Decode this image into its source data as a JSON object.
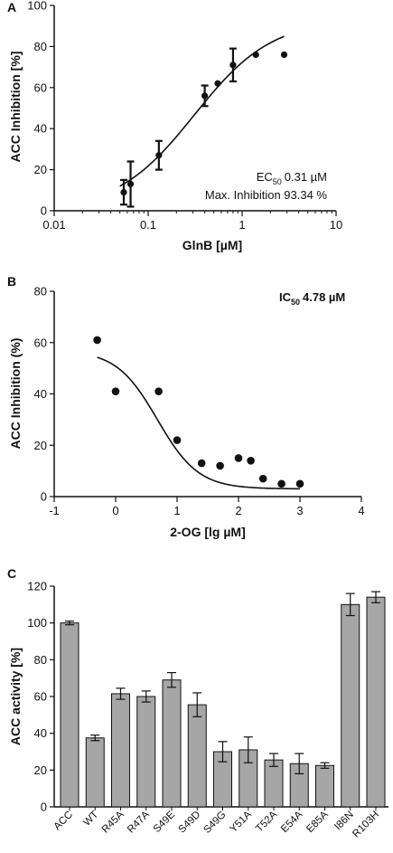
{
  "chart_data": [
    {
      "panel": "A",
      "type": "scatter",
      "xscale": "log",
      "xlabel": "GlnB [µM]",
      "ylabel": "ACC Inhibition [%]",
      "xlim": [
        0.01,
        10
      ],
      "ylim": [
        0,
        100
      ],
      "xticks": [
        0.01,
        0.1,
        1,
        10
      ],
      "xtick_labels": [
        "0.01",
        "0.1",
        "1",
        "10"
      ],
      "yticks": [
        0,
        20,
        40,
        60,
        80,
        100
      ],
      "ytick_labels": [
        "0",
        "20",
        "40",
        "60",
        "80",
        "100"
      ],
      "points": [
        {
          "x": 0.055,
          "y": 9,
          "err": 6
        },
        {
          "x": 0.065,
          "y": 13,
          "err": 11
        },
        {
          "x": 0.13,
          "y": 27,
          "err": 7
        },
        {
          "x": 0.4,
          "y": 56,
          "err": 5
        },
        {
          "x": 0.55,
          "y": 62,
          "err": 0
        },
        {
          "x": 0.8,
          "y": 71,
          "err": 8
        },
        {
          "x": 1.4,
          "y": 76,
          "err": 0
        },
        {
          "x": 2.8,
          "y": 76,
          "err": 0
        }
      ],
      "fit": {
        "model": "hill",
        "top": 93.34,
        "ec50": 0.31,
        "hill": 1.05,
        "x_range": [
          0.05,
          2.8
        ]
      },
      "annotations": {
        "ec50_prefix": "EC",
        "ec50_sub": "50",
        "ec50_value": "0.31 µM",
        "max_inhibition": "Max. Inhibition 93.34 %"
      }
    },
    {
      "panel": "B",
      "type": "scatter",
      "xlabel": "2-OG [lg µM]",
      "ylabel": "ACC Inhibition (%)",
      "xlim": [
        -1,
        4
      ],
      "ylim": [
        0,
        80
      ],
      "xticks": [
        -1,
        0,
        1,
        2,
        3,
        4
      ],
      "xtick_labels": [
        "-1",
        "0",
        "1",
        "2",
        "3",
        "4"
      ],
      "yticks": [
        0,
        20,
        40,
        60,
        80
      ],
      "ytick_labels": [
        "0",
        "20",
        "40",
        "60",
        "80"
      ],
      "points": [
        {
          "x": -0.3,
          "y": 61
        },
        {
          "x": 0.0,
          "y": 41
        },
        {
          "x": 0.7,
          "y": 41
        },
        {
          "x": 1.0,
          "y": 22
        },
        {
          "x": 1.4,
          "y": 13
        },
        {
          "x": 1.7,
          "y": 12
        },
        {
          "x": 2.0,
          "y": 15
        },
        {
          "x": 2.2,
          "y": 14
        },
        {
          "x": 2.4,
          "y": 7
        },
        {
          "x": 2.7,
          "y": 5
        },
        {
          "x": 3.0,
          "y": 5
        }
      ],
      "fit": {
        "model": "decay",
        "top": 57,
        "bottom": 3,
        "ic50": 0.68,
        "hill": 1.3,
        "x_range": [
          -0.3,
          3.0
        ]
      },
      "annotations": {
        "ic50_prefix": "IC",
        "ic50_sub": "50",
        "ic50_value": "4.78 µM"
      }
    },
    {
      "panel": "C",
      "type": "bar",
      "ylabel": "ACC activity [%]",
      "ylim": [
        0,
        120
      ],
      "yticks": [
        0,
        20,
        40,
        60,
        80,
        100,
        120
      ],
      "ytick_labels": [
        "0",
        "20",
        "40",
        "60",
        "80",
        "100",
        "120"
      ],
      "categories": [
        "ACC",
        "WT",
        "R45A",
        "R47A",
        "S49E",
        "S49D",
        "S49G",
        "Y51A",
        "T52A",
        "E54A",
        "E85A",
        "I86N",
        "R103H"
      ],
      "values": [
        100,
        37.5,
        61.5,
        60,
        69,
        55.5,
        30,
        31,
        25.5,
        23.5,
        22.5,
        110,
        114
      ],
      "errors": [
        1,
        1.5,
        3,
        3,
        4,
        6.5,
        5.5,
        7,
        3.5,
        5.5,
        1.5,
        6,
        3
      ]
    }
  ],
  "colors": {
    "bar_fill": "#a6a6a6",
    "ink": "#111111"
  }
}
